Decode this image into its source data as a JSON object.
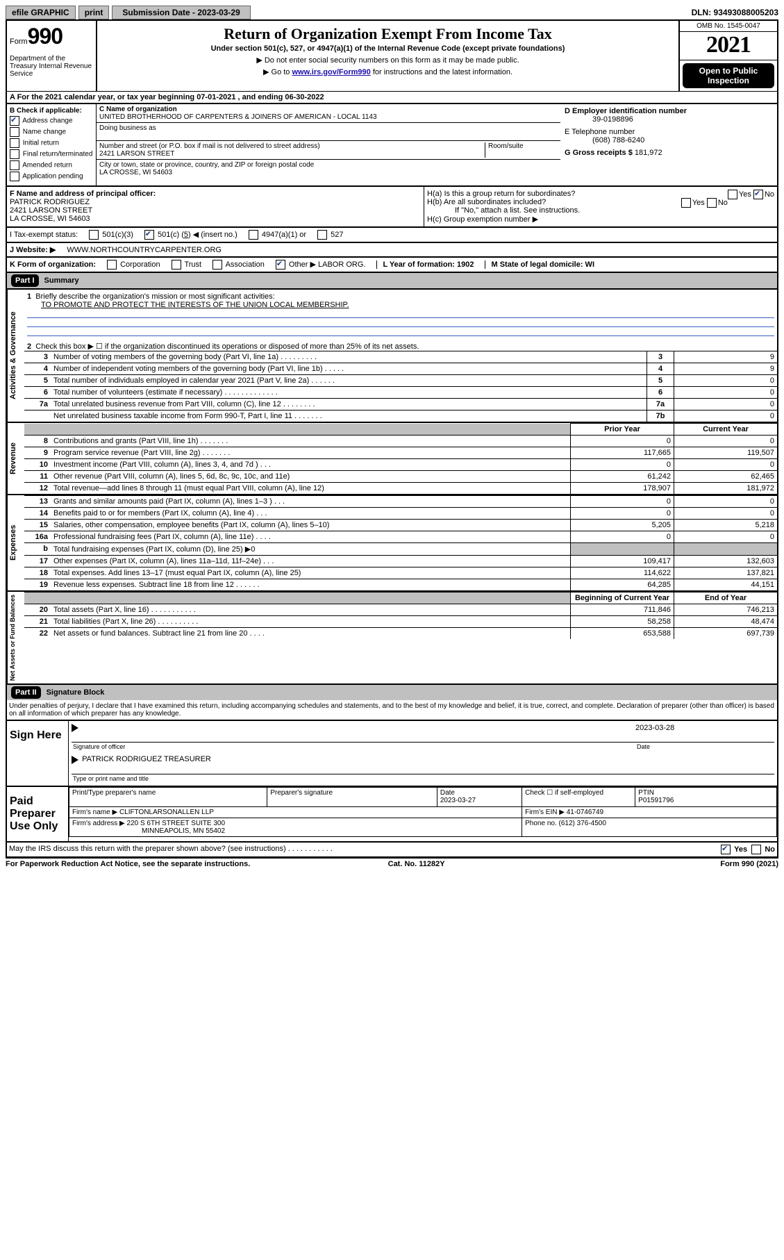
{
  "topbar": {
    "efile": "efile GRAPHIC",
    "print": "print",
    "sub_date_label": "Submission Date - 2023-03-29",
    "dln": "DLN: 93493088005203"
  },
  "header": {
    "form_small": "Form",
    "form_big": "990",
    "title": "Return of Organization Exempt From Income Tax",
    "subtitle": "Under section 501(c), 527, or 4947(a)(1) of the Internal Revenue Code (except private foundations)",
    "arrow1": "▶ Do not enter social security numbers on this form as it may be made public.",
    "arrow2_pre": "▶ Go to ",
    "arrow2_link": "www.irs.gov/Form990",
    "arrow2_post": " for instructions and the latest information.",
    "omb": "OMB No. 1545-0047",
    "year": "2021",
    "open": "Open to Public Inspection",
    "dept": "Department of the Treasury Internal Revenue Service"
  },
  "line_a": "A For the 2021 calendar year, or tax year beginning 07-01-2021    , and ending 06-30-2022",
  "col_b": {
    "label": "B Check if applicable:",
    "items": [
      {
        "t": "Address change",
        "on": true
      },
      {
        "t": "Name change",
        "on": false
      },
      {
        "t": "Initial return",
        "on": false
      },
      {
        "t": "Final return/terminated",
        "on": false
      },
      {
        "t": "Amended return",
        "on": false
      },
      {
        "t": "Application pending",
        "on": false
      }
    ]
  },
  "c_block": {
    "name_lbl": "C Name of organization",
    "name": "UNITED BROTHERHOOD OF CARPENTERS & JOINERS OF AMERICAN - LOCAL 1143",
    "dba_lbl": "Doing business as",
    "addr_lbl": "Number and street (or P.O. box if mail is not delivered to street address)",
    "addr": "2421 LARSON STREET",
    "room_lbl": "Room/suite",
    "city_lbl": "City or town, state or province, country, and ZIP or foreign postal code",
    "city": "LA CROSSE, WI  54603"
  },
  "d_block": {
    "ein_lbl": "D Employer identification number",
    "ein": "39-0198896",
    "phone_lbl": "E Telephone number",
    "phone": "(608) 788-6240",
    "gross_lbl": "G Gross receipts $",
    "gross": "181,972"
  },
  "f_block": {
    "lbl": "F  Name and address of principal officer:",
    "name": "PATRICK RODRIGUEZ",
    "addr1": "2421 LARSON STREET",
    "addr2": "LA CROSSE, WI  54603"
  },
  "h_block": {
    "ha": "H(a)  Is this a group return for subordinates?",
    "hb": "H(b)  Are all subordinates included?",
    "hb_note": "If \"No,\" attach a list. See instructions.",
    "hc": "H(c)  Group exemption number ▶",
    "yes": "Yes",
    "no": "No"
  },
  "row_i": {
    "lbl": "I   Tax-exempt status:",
    "opt1": "501(c)(3)",
    "opt2_pre": "501(c) (",
    "opt2_n": "5",
    "opt2_post": ") ◀ (insert no.)",
    "opt3": "4947(a)(1) or",
    "opt4": "527"
  },
  "row_j": {
    "lbl": "J   Website: ▶",
    "val": "WWW.NORTHCOUNTRYCARPENTER.ORG"
  },
  "row_k": {
    "lbl": "K Form of organization:",
    "o1": "Corporation",
    "o2": "Trust",
    "o3": "Association",
    "o4": "Other ▶",
    "o4v": "LABOR ORG.",
    "l": "L Year of formation: 1902",
    "m": "M State of legal domicile: WI"
  },
  "part1": {
    "part": "Part I",
    "title": "Summary",
    "q1_lbl": "Briefly describe the organization's mission or most significant activities:",
    "q1_val": "TO PROMOTE AND PROTECT THE INTERESTS OF THE UNION LOCAL MEMBERSHIP.",
    "q2": "Check this box ▶ ☐  if the organization discontinued its operations or disposed of more than 25% of its net assets.",
    "rows_ag": [
      {
        "n": "3",
        "t": "Number of voting members of the governing body (Part VI, line 1a)  .   .   .   .   .   .   .   .   .",
        "c": "3",
        "v": "9"
      },
      {
        "n": "4",
        "t": "Number of independent voting members of the governing body (Part VI, line 1b)   .   .   .   .   .",
        "c": "4",
        "v": "9"
      },
      {
        "n": "5",
        "t": "Total number of individuals employed in calendar year 2021 (Part V, line 2a)   .   .   .   .   .   .",
        "c": "5",
        "v": "0"
      },
      {
        "n": "6",
        "t": "Total number of volunteers (estimate if necessary)   .   .   .   .   .   .   .   .   .   .   .   .   .",
        "c": "6",
        "v": "0"
      },
      {
        "n": "7a",
        "t": "Total unrelated business revenue from Part VIII, column (C), line 12   .   .   .   .   .   .   .   .",
        "c": "7a",
        "v": "0"
      },
      {
        "n": "",
        "t": "Net unrelated business taxable income from Form 990-T, Part I, line 11   .   .   .   .   .   .   .",
        "c": "7b",
        "v": "0"
      }
    ],
    "py": "Prior Year",
    "cy": "Current Year",
    "rev": [
      {
        "n": "8",
        "t": "Contributions and grants (Part VIII, line 1h)   .   .   .   .   .   .   .",
        "p": "0",
        "c": "0"
      },
      {
        "n": "9",
        "t": "Program service revenue (Part VIII, line 2g)   .   .   .   .   .   .   .",
        "p": "117,665",
        "c": "119,507"
      },
      {
        "n": "10",
        "t": "Investment income (Part VIII, column (A), lines 3, 4, and 7d )   .   .   .",
        "p": "0",
        "c": "0"
      },
      {
        "n": "11",
        "t": "Other revenue (Part VIII, column (A), lines 5, 6d, 8c, 9c, 10c, and 11e)",
        "p": "61,242",
        "c": "62,465"
      },
      {
        "n": "12",
        "t": "Total revenue—add lines 8 through 11 (must equal Part VIII, column (A), line 12)",
        "p": "178,907",
        "c": "181,972"
      }
    ],
    "exp": [
      {
        "n": "13",
        "t": "Grants and similar amounts paid (Part IX, column (A), lines 1–3 )   .   .   .",
        "p": "0",
        "c": "0"
      },
      {
        "n": "14",
        "t": "Benefits paid to or for members (Part IX, column (A), line 4)   .   .   .",
        "p": "0",
        "c": "0"
      },
      {
        "n": "15",
        "t": "Salaries, other compensation, employee benefits (Part IX, column (A), lines 5–10)",
        "p": "5,205",
        "c": "5,218"
      },
      {
        "n": "16a",
        "t": "Professional fundraising fees (Part IX, column (A), line 11e)   .   .   .   .",
        "p": "0",
        "c": "0"
      },
      {
        "n": "b",
        "t": "Total fundraising expenses (Part IX, column (D), line 25) ▶0",
        "p": "",
        "c": ""
      },
      {
        "n": "17",
        "t": "Other expenses (Part IX, column (A), lines 11a–11d, 11f–24e)   .   .   .",
        "p": "109,417",
        "c": "132,603"
      },
      {
        "n": "18",
        "t": "Total expenses. Add lines 13–17 (must equal Part IX, column (A), line 25)",
        "p": "114,622",
        "c": "137,821"
      },
      {
        "n": "19",
        "t": "Revenue less expenses. Subtract line 18 from line 12   .   .   .   .   .   .",
        "p": "64,285",
        "c": "44,151"
      }
    ],
    "bcy": "Beginning of Current Year",
    "eoy": "End of Year",
    "net": [
      {
        "n": "20",
        "t": "Total assets (Part X, line 16)   .   .   .   .   .   .   .   .   .   .   .",
        "p": "711,846",
        "c": "746,213"
      },
      {
        "n": "21",
        "t": "Total liabilities (Part X, line 26)   .   .   .   .   .   .   .   .   .   .",
        "p": "58,258",
        "c": "48,474"
      },
      {
        "n": "22",
        "t": "Net assets or fund balances. Subtract line 21 from line 20   .   .   .   .",
        "p": "653,588",
        "c": "697,739"
      }
    ]
  },
  "labels": {
    "ag": "Activities & Governance",
    "rev": "Revenue",
    "exp": "Expenses",
    "net": "Net Assets or Fund Balances"
  },
  "part2": {
    "part": "Part II",
    "title": "Signature Block",
    "decl": "Under penalties of perjury, I declare that I have examined this return, including accompanying schedules and statements, and to the best of my knowledge and belief, it is true, correct, and complete. Declaration of preparer (other than officer) is based on all information of which preparer has any knowledge."
  },
  "sign": {
    "here": "Sign Here",
    "sig_lbl": "Signature of officer",
    "date_lbl": "Date",
    "date": "2023-03-28",
    "name": "PATRICK RODRIGUEZ  TREASURER",
    "name_lbl": "Type or print name and title"
  },
  "prep": {
    "title": "Paid Preparer Use Only",
    "h1": "Print/Type preparer's name",
    "h2": "Preparer's signature",
    "h3": "Date",
    "date": "2023-03-27",
    "h4": "Check ☐ if self-employed",
    "h5": "PTIN",
    "ptin": "P01591796",
    "firm_lbl": "Firm's name    ▶",
    "firm": "CLIFTONLARSONALLEN LLP",
    "ein_lbl": "Firm's EIN ▶",
    "ein": "41-0746749",
    "addr_lbl": "Firm's address ▶",
    "addr1": "220 S 6TH STREET SUITE 300",
    "addr2": "MINNEAPOLIS, MN  55402",
    "phone_lbl": "Phone no.",
    "phone": "(612) 376-4500"
  },
  "footer": {
    "q": "May the IRS discuss this return with the preparer shown above? (see instructions)   .   .   .   .   .   .   .   .   .   .   .",
    "yes": "Yes",
    "no": "No",
    "pra": "For Paperwork Reduction Act Notice, see the separate instructions.",
    "cat": "Cat. No. 11282Y",
    "form": "Form 990 (2021)"
  }
}
